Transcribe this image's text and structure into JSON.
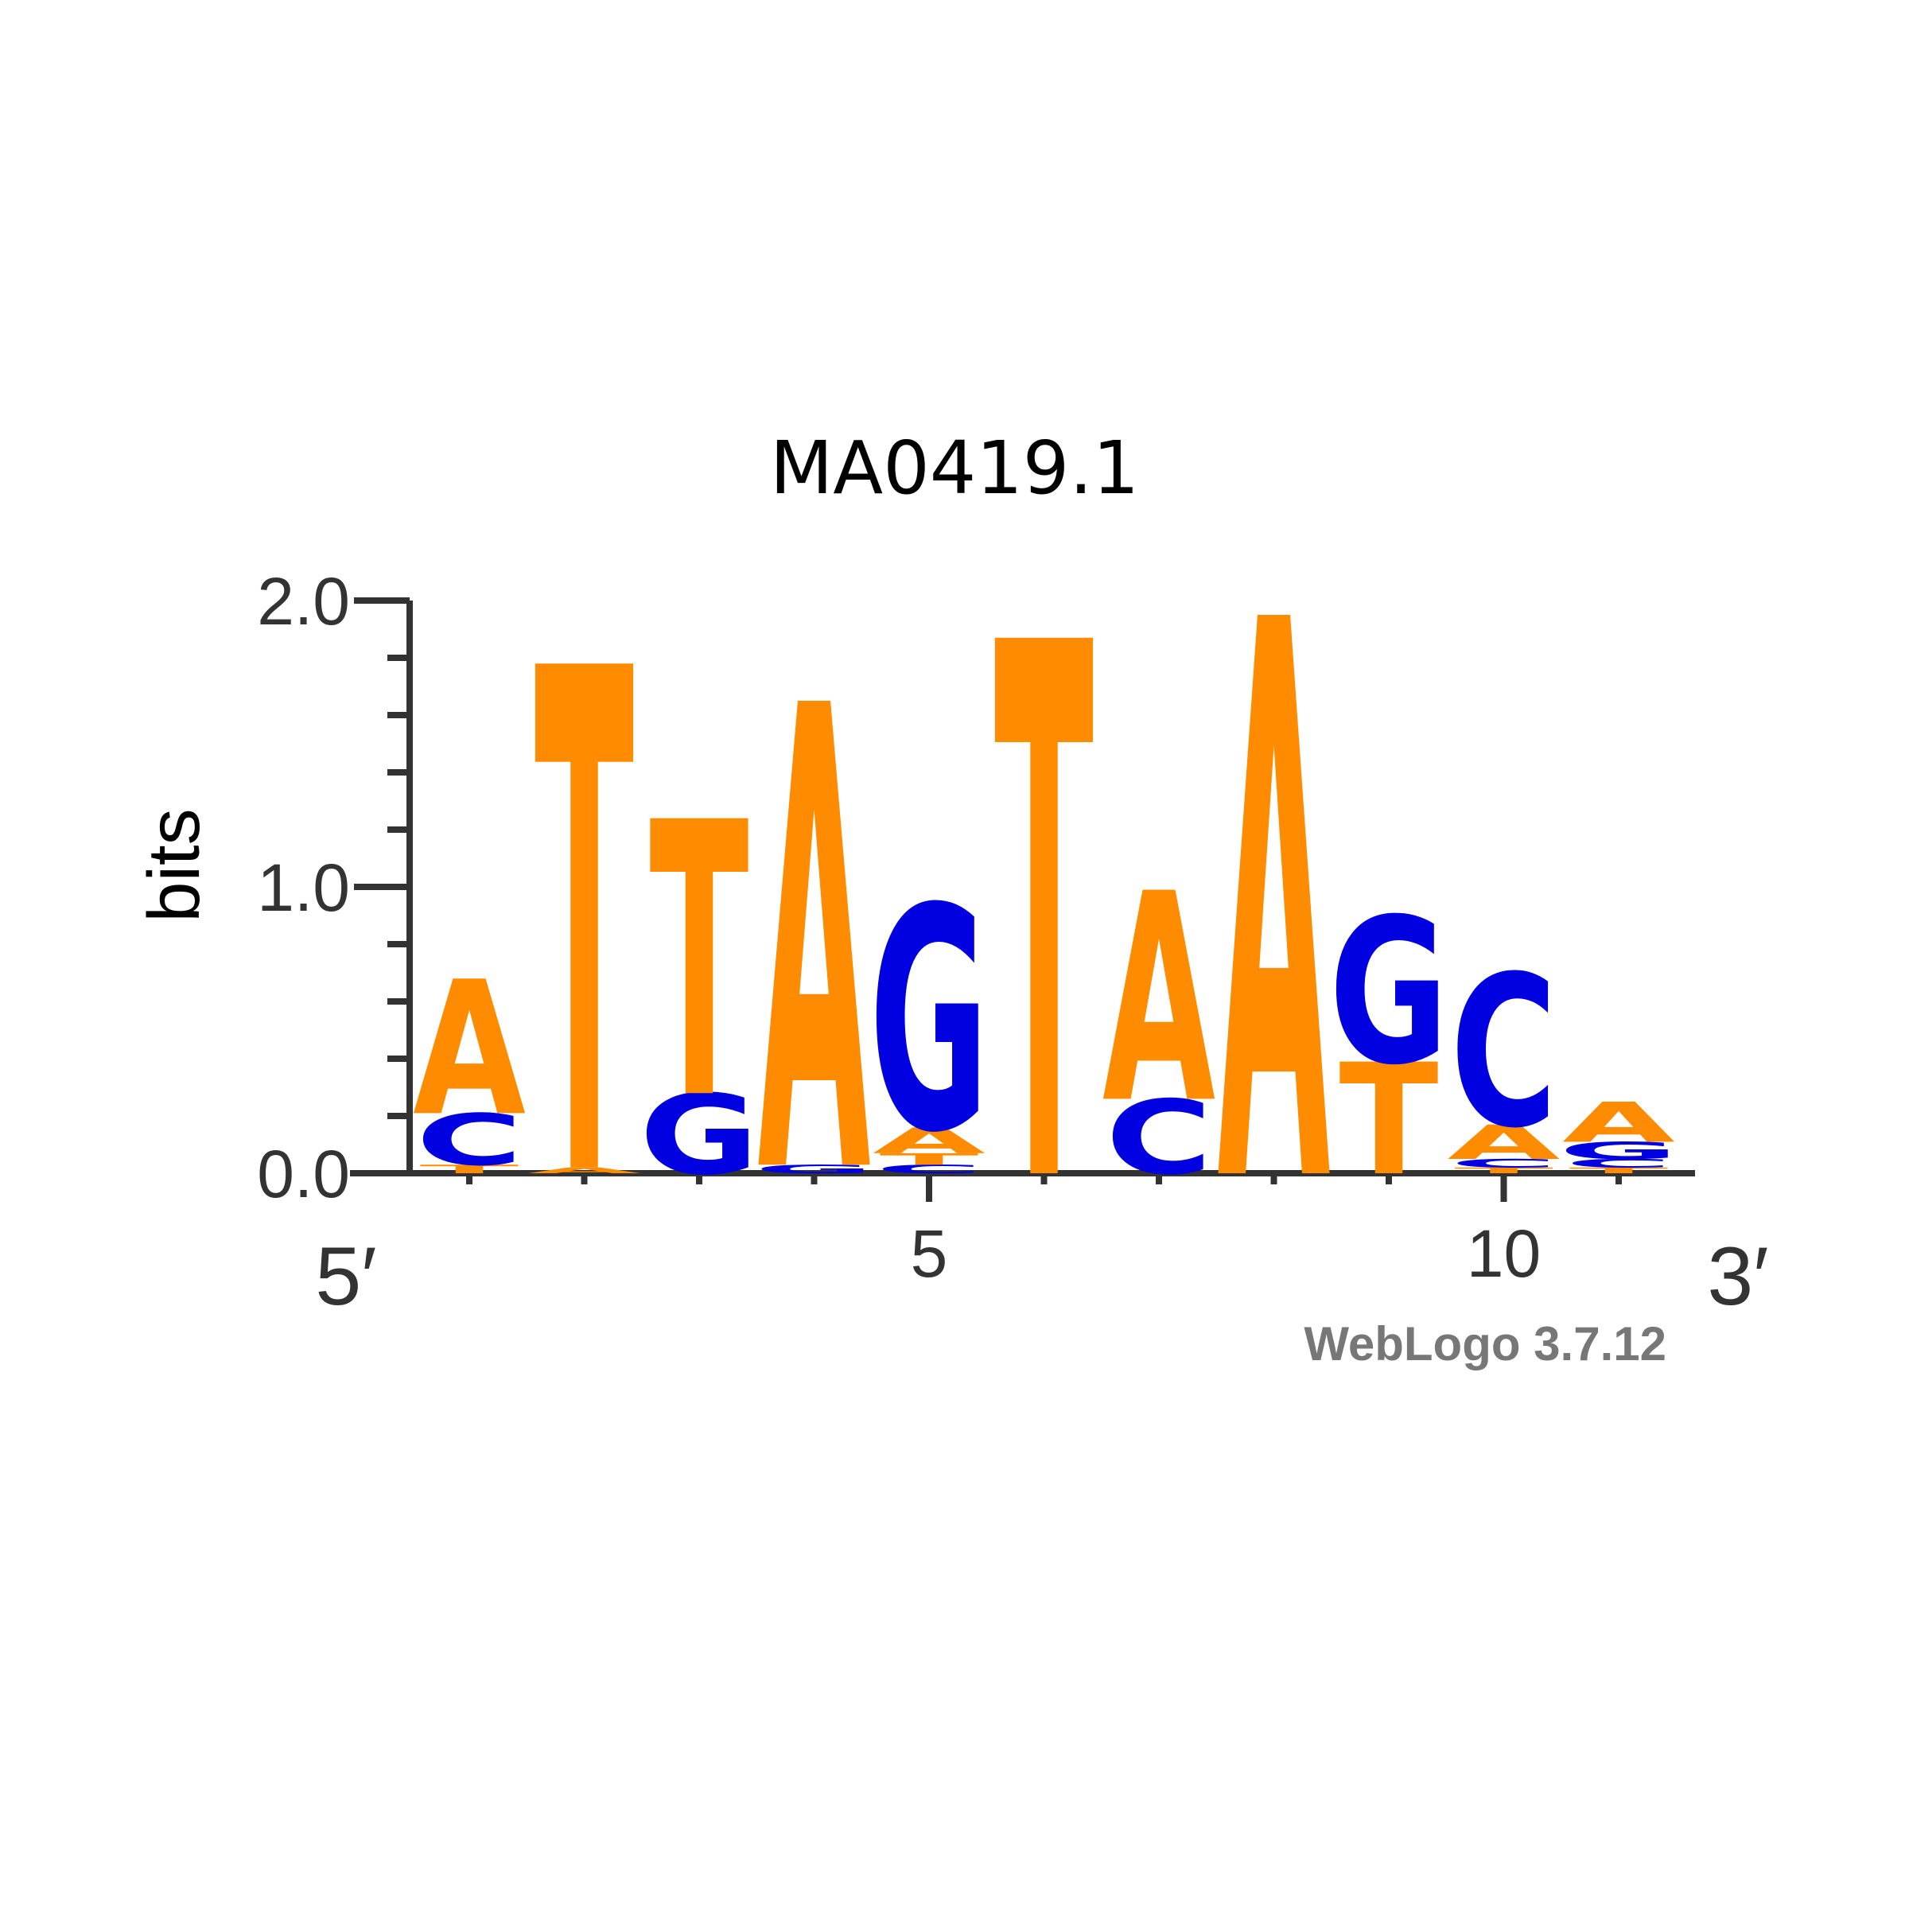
{
  "chart_data": {
    "type": "sequence-logo",
    "title": "MA0419.1",
    "ylabel": "bits",
    "ylim": [
      0,
      2
    ],
    "y_ticks": [
      "0.0",
      "1.0",
      "2.0"
    ],
    "x_tick_labels": [
      {
        "position": 5,
        "label": "5"
      },
      {
        "position": 10,
        "label": "10"
      }
    ],
    "start_label": "5′",
    "end_label": "3′",
    "credit": "WebLogo 3.7.12",
    "colors": {
      "A": "#ff8c00",
      "T": "#ff8c00",
      "C": "#0000e0",
      "G": "#0000e0"
    },
    "positions": [
      {
        "position": 1,
        "letters": [
          {
            "base": "T",
            "height": 0.03
          },
          {
            "base": "C",
            "height": 0.18
          },
          {
            "base": "A",
            "height": 0.47
          }
        ]
      },
      {
        "position": 2,
        "letters": [
          {
            "base": "A",
            "height": 0.02
          },
          {
            "base": "T",
            "height": 1.76
          }
        ]
      },
      {
        "position": 3,
        "letters": [
          {
            "base": "G",
            "height": 0.28
          },
          {
            "base": "T",
            "height": 0.96
          }
        ]
      },
      {
        "position": 4,
        "letters": [
          {
            "base": "G",
            "height": 0.03
          },
          {
            "base": "A",
            "height": 1.62
          }
        ]
      },
      {
        "position": 5,
        "letters": [
          {
            "base": "C",
            "height": 0.03
          },
          {
            "base": "T",
            "height": 0.04
          },
          {
            "base": "A",
            "height": 0.09
          },
          {
            "base": "G",
            "height": 0.78
          }
        ]
      },
      {
        "position": 6,
        "letters": [
          {
            "base": "T",
            "height": 1.87
          }
        ]
      },
      {
        "position": 7,
        "letters": [
          {
            "base": "C",
            "height": 0.26
          },
          {
            "base": "A",
            "height": 0.73
          }
        ]
      },
      {
        "position": 8,
        "letters": [
          {
            "base": "A",
            "height": 1.95
          }
        ]
      },
      {
        "position": 9,
        "letters": [
          {
            "base": "T",
            "height": 0.39
          },
          {
            "base": "G",
            "height": 0.51
          }
        ]
      },
      {
        "position": 10,
        "letters": [
          {
            "base": "T",
            "height": 0.02
          },
          {
            "base": "C",
            "height": 0.03
          },
          {
            "base": "A",
            "height": 0.12
          },
          {
            "base": "C",
            "height": 0.53
          }
        ]
      },
      {
        "position": 11,
        "letters": [
          {
            "base": "T",
            "height": 0.02
          },
          {
            "base": "C",
            "height": 0.03
          },
          {
            "base": "G",
            "height": 0.06
          },
          {
            "base": "A",
            "height": 0.14
          }
        ]
      }
    ]
  }
}
